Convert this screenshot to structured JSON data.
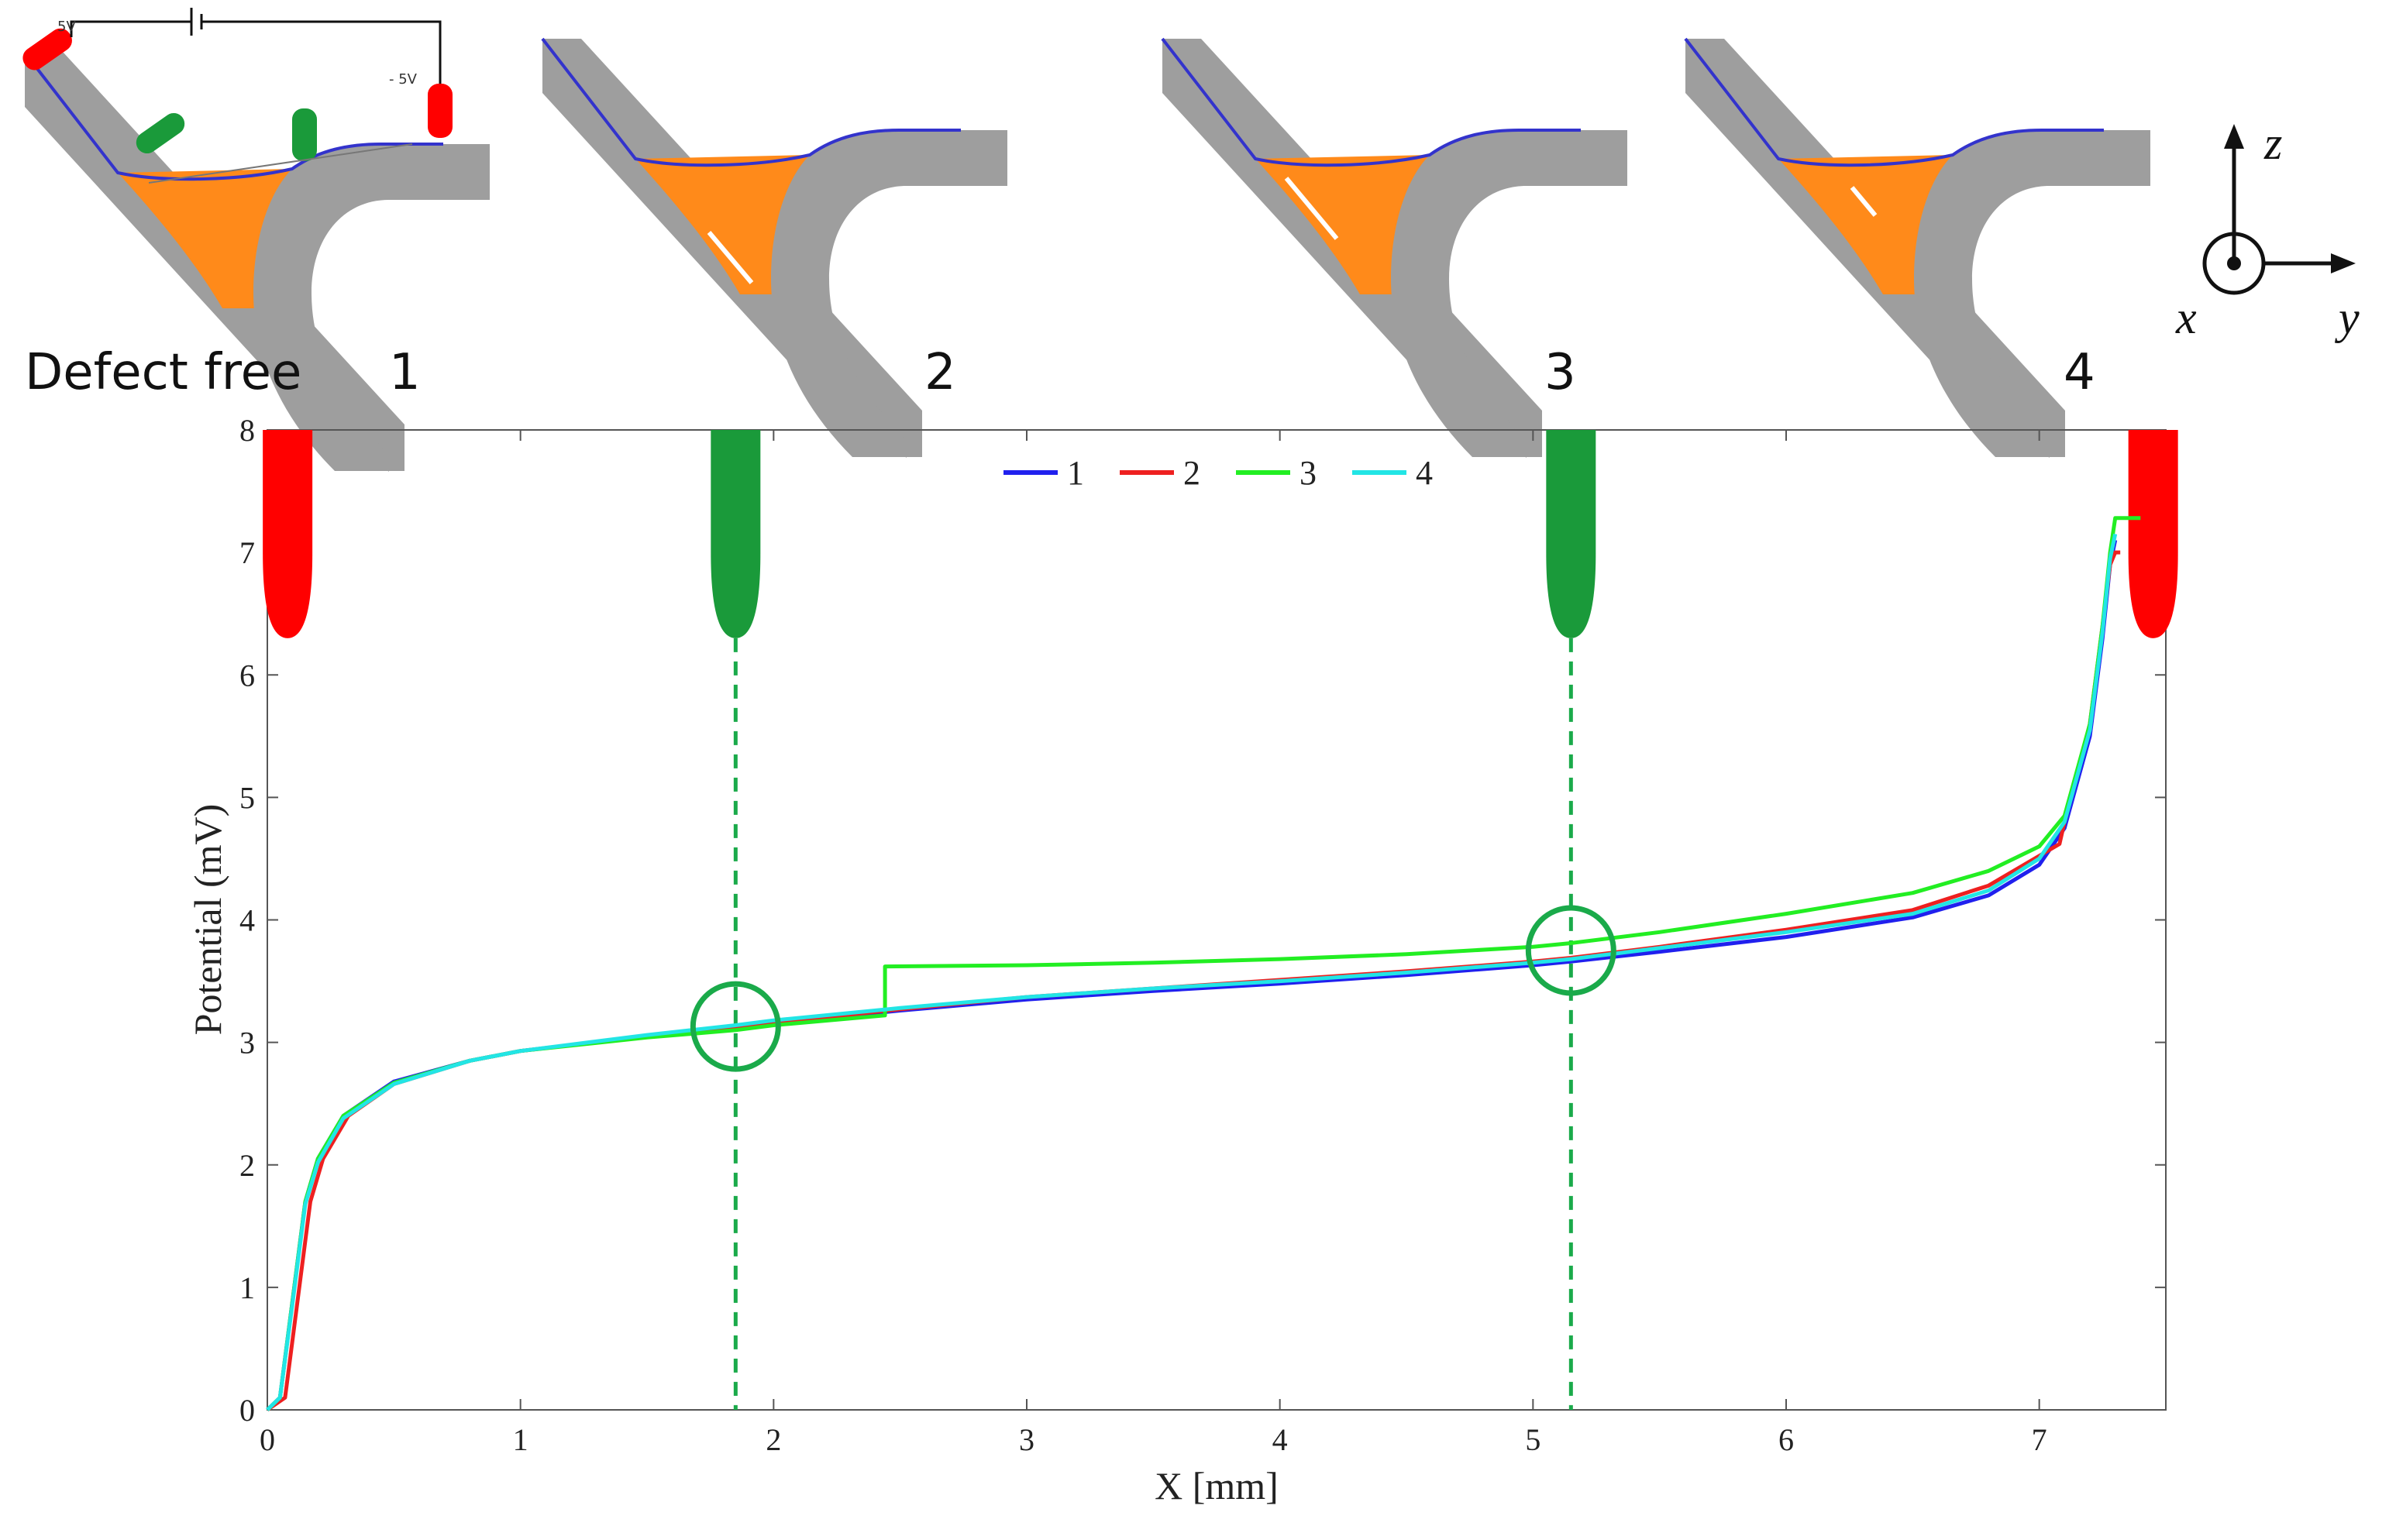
{
  "schematics": {
    "defect_free_label": "Defect free",
    "case_labels": [
      "1",
      "2",
      "3",
      "4"
    ],
    "probe_voltage_plus": "5V",
    "probe_voltage_minus": "- 5V",
    "probe_positions_ticks": [
      "0",
      "1",
      "2",
      "3",
      "4",
      "5",
      "6",
      "7"
    ],
    "colors": {
      "plate": "#9e9e9e",
      "weld": "#ff8a1a",
      "surface": "#3333cc",
      "defect": "#ffffff",
      "probe_current": "#ff0000",
      "probe_voltage": "#1a9a3a"
    }
  },
  "coordinate_system": {
    "axes": [
      "z",
      "x",
      "y"
    ],
    "x_direction": "out-of-page"
  },
  "chart_data": {
    "type": "line",
    "xlabel": "X [mm]",
    "ylabel": "Potential (mV)",
    "xlim": [
      0,
      7.5
    ],
    "ylim": [
      0,
      8
    ],
    "xticks": [
      0,
      1,
      2,
      3,
      4,
      5,
      6,
      7
    ],
    "yticks": [
      0,
      1,
      2,
      3,
      4,
      5,
      6,
      7,
      8
    ],
    "legend_position": "top-center",
    "grid": false,
    "series": [
      {
        "name": "1",
        "color": "#2020ee",
        "x": [
          0,
          0.05,
          0.1,
          0.15,
          0.2,
          0.3,
          0.5,
          0.8,
          1.0,
          1.5,
          1.85,
          2.0,
          2.5,
          3.0,
          3.5,
          4.0,
          4.5,
          5.0,
          5.15,
          5.5,
          6.0,
          6.5,
          6.8,
          7.0,
          7.1,
          7.2,
          7.25,
          7.28,
          7.3
        ],
        "y": [
          0,
          0.1,
          0.9,
          1.7,
          2.05,
          2.4,
          2.68,
          2.85,
          2.93,
          3.05,
          3.12,
          3.16,
          3.26,
          3.35,
          3.42,
          3.48,
          3.55,
          3.63,
          3.66,
          3.74,
          3.86,
          4.02,
          4.2,
          4.45,
          4.75,
          5.5,
          6.3,
          6.9,
          7.1
        ]
      },
      {
        "name": "2",
        "color": "#ee2020",
        "x": [
          0,
          0.07,
          0.12,
          0.17,
          0.22,
          0.32,
          0.5,
          0.8,
          1.0,
          1.5,
          1.85,
          2.0,
          2.5,
          3.0,
          3.5,
          4.0,
          4.5,
          5.0,
          5.15,
          5.5,
          6.0,
          6.5,
          6.8,
          7.08,
          7.1,
          7.2,
          7.25,
          7.28,
          7.3,
          7.32
        ],
        "y": [
          0,
          0.1,
          0.9,
          1.7,
          2.05,
          2.4,
          2.66,
          2.85,
          2.93,
          3.05,
          3.12,
          3.16,
          3.27,
          3.37,
          3.44,
          3.51,
          3.58,
          3.66,
          3.69,
          3.78,
          3.92,
          4.08,
          4.28,
          4.62,
          4.8,
          5.6,
          6.4,
          6.9,
          7.0,
          7.0
        ]
      },
      {
        "name": "3",
        "color": "#22ee22",
        "x": [
          0,
          0.05,
          0.1,
          0.15,
          0.2,
          0.3,
          0.5,
          0.8,
          1.0,
          1.5,
          1.85,
          2.0,
          2.44,
          2.44,
          3.0,
          3.5,
          4.0,
          4.5,
          5.0,
          5.15,
          5.5,
          6.0,
          6.5,
          6.8,
          7.0,
          7.1,
          7.2,
          7.25,
          7.28,
          7.3,
          7.4
        ],
        "y": [
          0,
          0.1,
          0.9,
          1.7,
          2.05,
          2.4,
          2.67,
          2.85,
          2.93,
          3.04,
          3.1,
          3.14,
          3.22,
          3.62,
          3.63,
          3.65,
          3.68,
          3.72,
          3.78,
          3.81,
          3.9,
          4.05,
          4.22,
          4.4,
          4.6,
          4.85,
          5.6,
          6.4,
          7.0,
          7.28,
          7.28
        ]
      },
      {
        "name": "4",
        "color": "#22e5e5",
        "x": [
          0,
          0.05,
          0.1,
          0.15,
          0.2,
          0.3,
          0.5,
          0.8,
          1.0,
          1.5,
          1.85,
          2.0,
          2.5,
          3.0,
          3.5,
          4.0,
          4.5,
          5.0,
          5.15,
          5.5,
          6.0,
          6.5,
          6.8,
          7.0,
          7.1,
          7.2,
          7.25,
          7.28,
          7.3
        ],
        "y": [
          0,
          0.1,
          0.88,
          1.68,
          2.02,
          2.38,
          2.66,
          2.85,
          2.93,
          3.06,
          3.14,
          3.18,
          3.28,
          3.37,
          3.44,
          3.5,
          3.57,
          3.65,
          3.68,
          3.77,
          3.9,
          4.05,
          4.24,
          4.5,
          4.8,
          5.55,
          6.35,
          6.95,
          7.15
        ]
      }
    ],
    "annotations": {
      "voltage_probe_x": [
        1.85,
        5.15
      ],
      "current_probe_x": [
        0.08,
        7.45
      ],
      "measurement_circles": [
        {
          "x": 1.85,
          "y": 3.13
        },
        {
          "x": 5.15,
          "y": 3.75
        }
      ]
    }
  }
}
